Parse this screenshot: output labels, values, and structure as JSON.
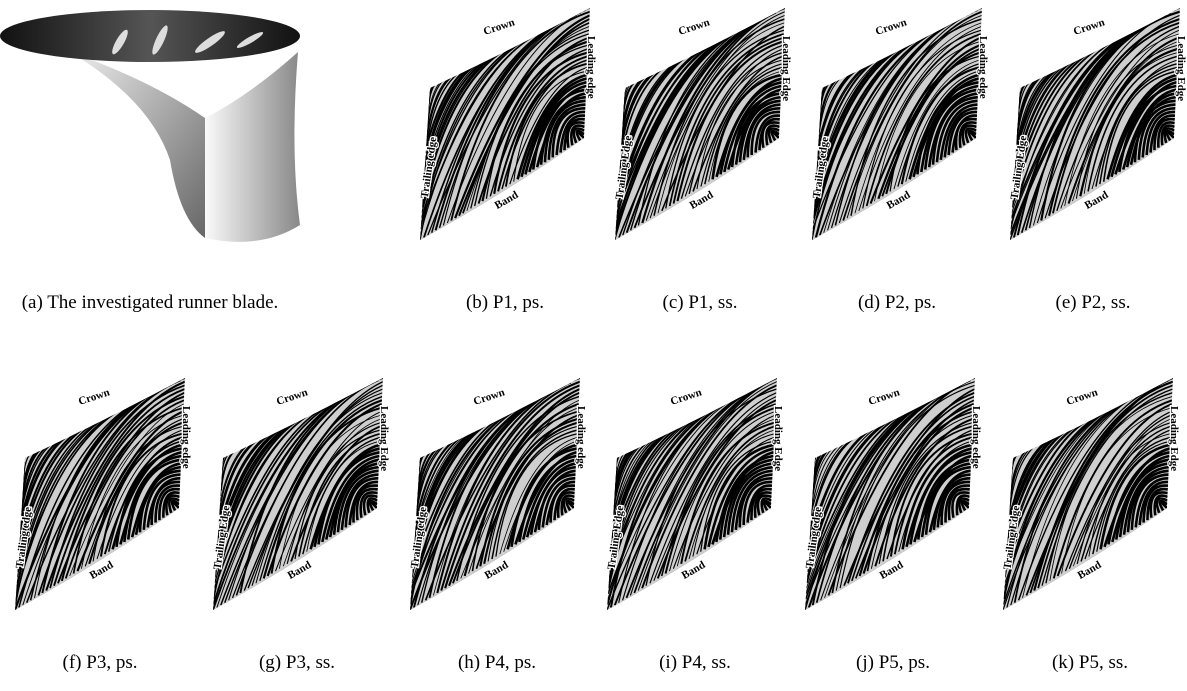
{
  "figure": {
    "panels": [
      {
        "caption": "(a) The investigated runner blade."
      },
      {
        "caption": "(b) P1, ps.",
        "labels": {
          "crown": "Crown",
          "leading": "Leading edge",
          "trailing": "Trailing edge",
          "band": "Band"
        }
      },
      {
        "caption": "(c) P1, ss.",
        "labels": {
          "crown": "Crown",
          "leading": "Leading Edge",
          "trailing": "Trailing Edge",
          "band": "Band"
        }
      },
      {
        "caption": "(d) P2, ps.",
        "labels": {
          "crown": "Crown",
          "leading": "Leading edge",
          "trailing": "Trailing edge",
          "band": "Band"
        }
      },
      {
        "caption": "(e) P2, ss.",
        "labels": {
          "crown": "Crown",
          "leading": "Leading Edge",
          "trailing": "Trailing Edge",
          "band": "Band"
        }
      },
      {
        "caption": "(f) P3, ps.",
        "labels": {
          "crown": "Crown",
          "leading": "Leading edge",
          "trailing": "Trailing edge",
          "band": "Band"
        }
      },
      {
        "caption": "(g) P3, ss.",
        "labels": {
          "crown": "Crown",
          "leading": "Leading Edge",
          "trailing": "Trailing Edge",
          "band": "Band"
        }
      },
      {
        "caption": "(h) P4, ps.",
        "labels": {
          "crown": "Crown",
          "leading": "Leading edge",
          "trailing": "Trailing edge",
          "band": "Band"
        }
      },
      {
        "caption": "(i) P4, ss.",
        "labels": {
          "crown": "Crown",
          "leading": "Leading Edge",
          "trailing": "Trailing Edge",
          "band": "Band"
        }
      },
      {
        "caption": "(j) P5, ps.",
        "labels": {
          "crown": "Crown",
          "leading": "Leading edge",
          "trailing": "Trailing edge",
          "band": "Band"
        }
      },
      {
        "caption": "(k) P5, ss.",
        "labels": {
          "crown": "Crown",
          "leading": "Leading Edge",
          "trailing": "Trailing Edge",
          "band": "Band"
        }
      }
    ]
  }
}
